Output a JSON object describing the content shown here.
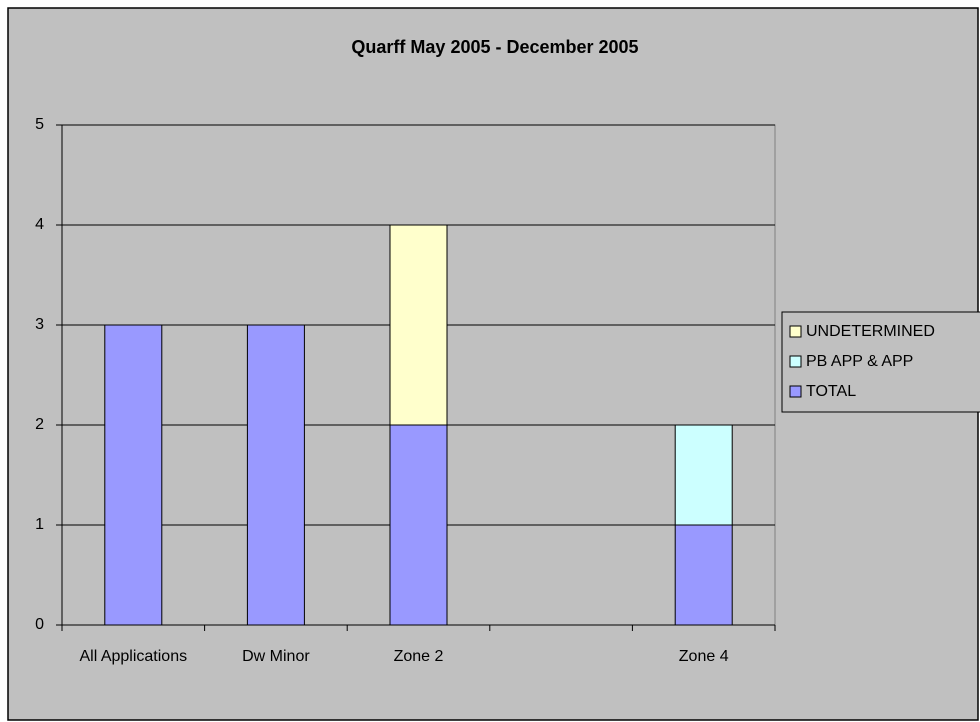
{
  "chart_data": {
    "type": "stacked_bar",
    "title": "Quarff May 2005 - December 2005",
    "categories": [
      "All Applications",
      "Dw Minor",
      "Zone 2",
      null,
      "Zone 4"
    ],
    "series": [
      {
        "name": "TOTAL",
        "color": "#9999ff",
        "values": [
          3,
          3,
          2,
          null,
          1
        ]
      },
      {
        "name": "PB APP & APP",
        "color": "#ccffff",
        "values": [
          null,
          null,
          null,
          null,
          1
        ]
      },
      {
        "name": "UNDETERMINED",
        "color": "#ffffcc",
        "values": [
          null,
          null,
          2,
          null,
          null
        ]
      }
    ],
    "ylim": [
      0,
      5
    ],
    "yticks": [
      0,
      1,
      2,
      3,
      4,
      5
    ],
    "grid": true,
    "legend": "right"
  }
}
